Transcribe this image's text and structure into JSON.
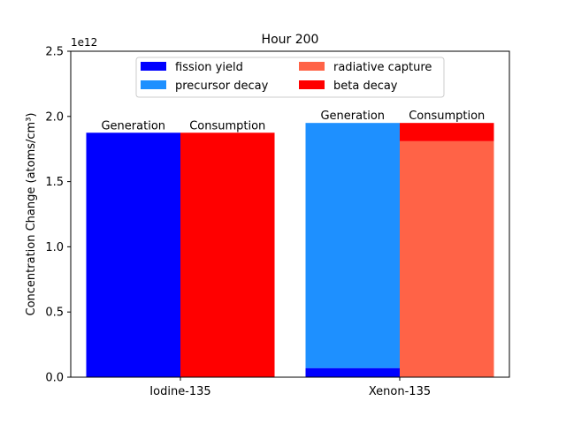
{
  "chart_data": {
    "type": "bar",
    "stacked": true,
    "title": "Hour 200",
    "ylabel": "Concentration Change (atoms/cm³)",
    "y_offset_text": "1e12",
    "ylim": [
      0,
      2.5
    ],
    "yticks": [
      "0.0",
      "0.5",
      "1.0",
      "1.5",
      "2.0",
      "2.5"
    ],
    "grid": false,
    "legend_position": "upper center",
    "legend": [
      {
        "label": "fission yield",
        "color": "#0000ff"
      },
      {
        "label": "radiative capture",
        "color": "#ff6347"
      },
      {
        "label": "precursor decay",
        "color": "#1e90ff"
      },
      {
        "label": "beta decay",
        "color": "#ff0000"
      }
    ],
    "groups": [
      {
        "label": "Iodine-135",
        "bars": [
          {
            "label": "Generation",
            "segments": [
              {
                "component": "fission yield",
                "value": 1.875,
                "color": "#0000ff"
              }
            ]
          },
          {
            "label": "Consumption",
            "segments": [
              {
                "component": "beta decay",
                "value": 1.875,
                "color": "#ff0000"
              }
            ]
          }
        ]
      },
      {
        "label": "Xenon-135",
        "bars": [
          {
            "label": "Generation",
            "segments": [
              {
                "component": "fission yield",
                "value": 0.07,
                "color": "#0000ff"
              },
              {
                "component": "precursor decay",
                "value": 1.88,
                "color": "#1e90ff"
              }
            ]
          },
          {
            "label": "Consumption",
            "segments": [
              {
                "component": "radiative capture",
                "value": 1.81,
                "color": "#ff6347"
              },
              {
                "component": "beta decay",
                "value": 0.14,
                "color": "#ff0000"
              }
            ]
          }
        ]
      }
    ]
  }
}
